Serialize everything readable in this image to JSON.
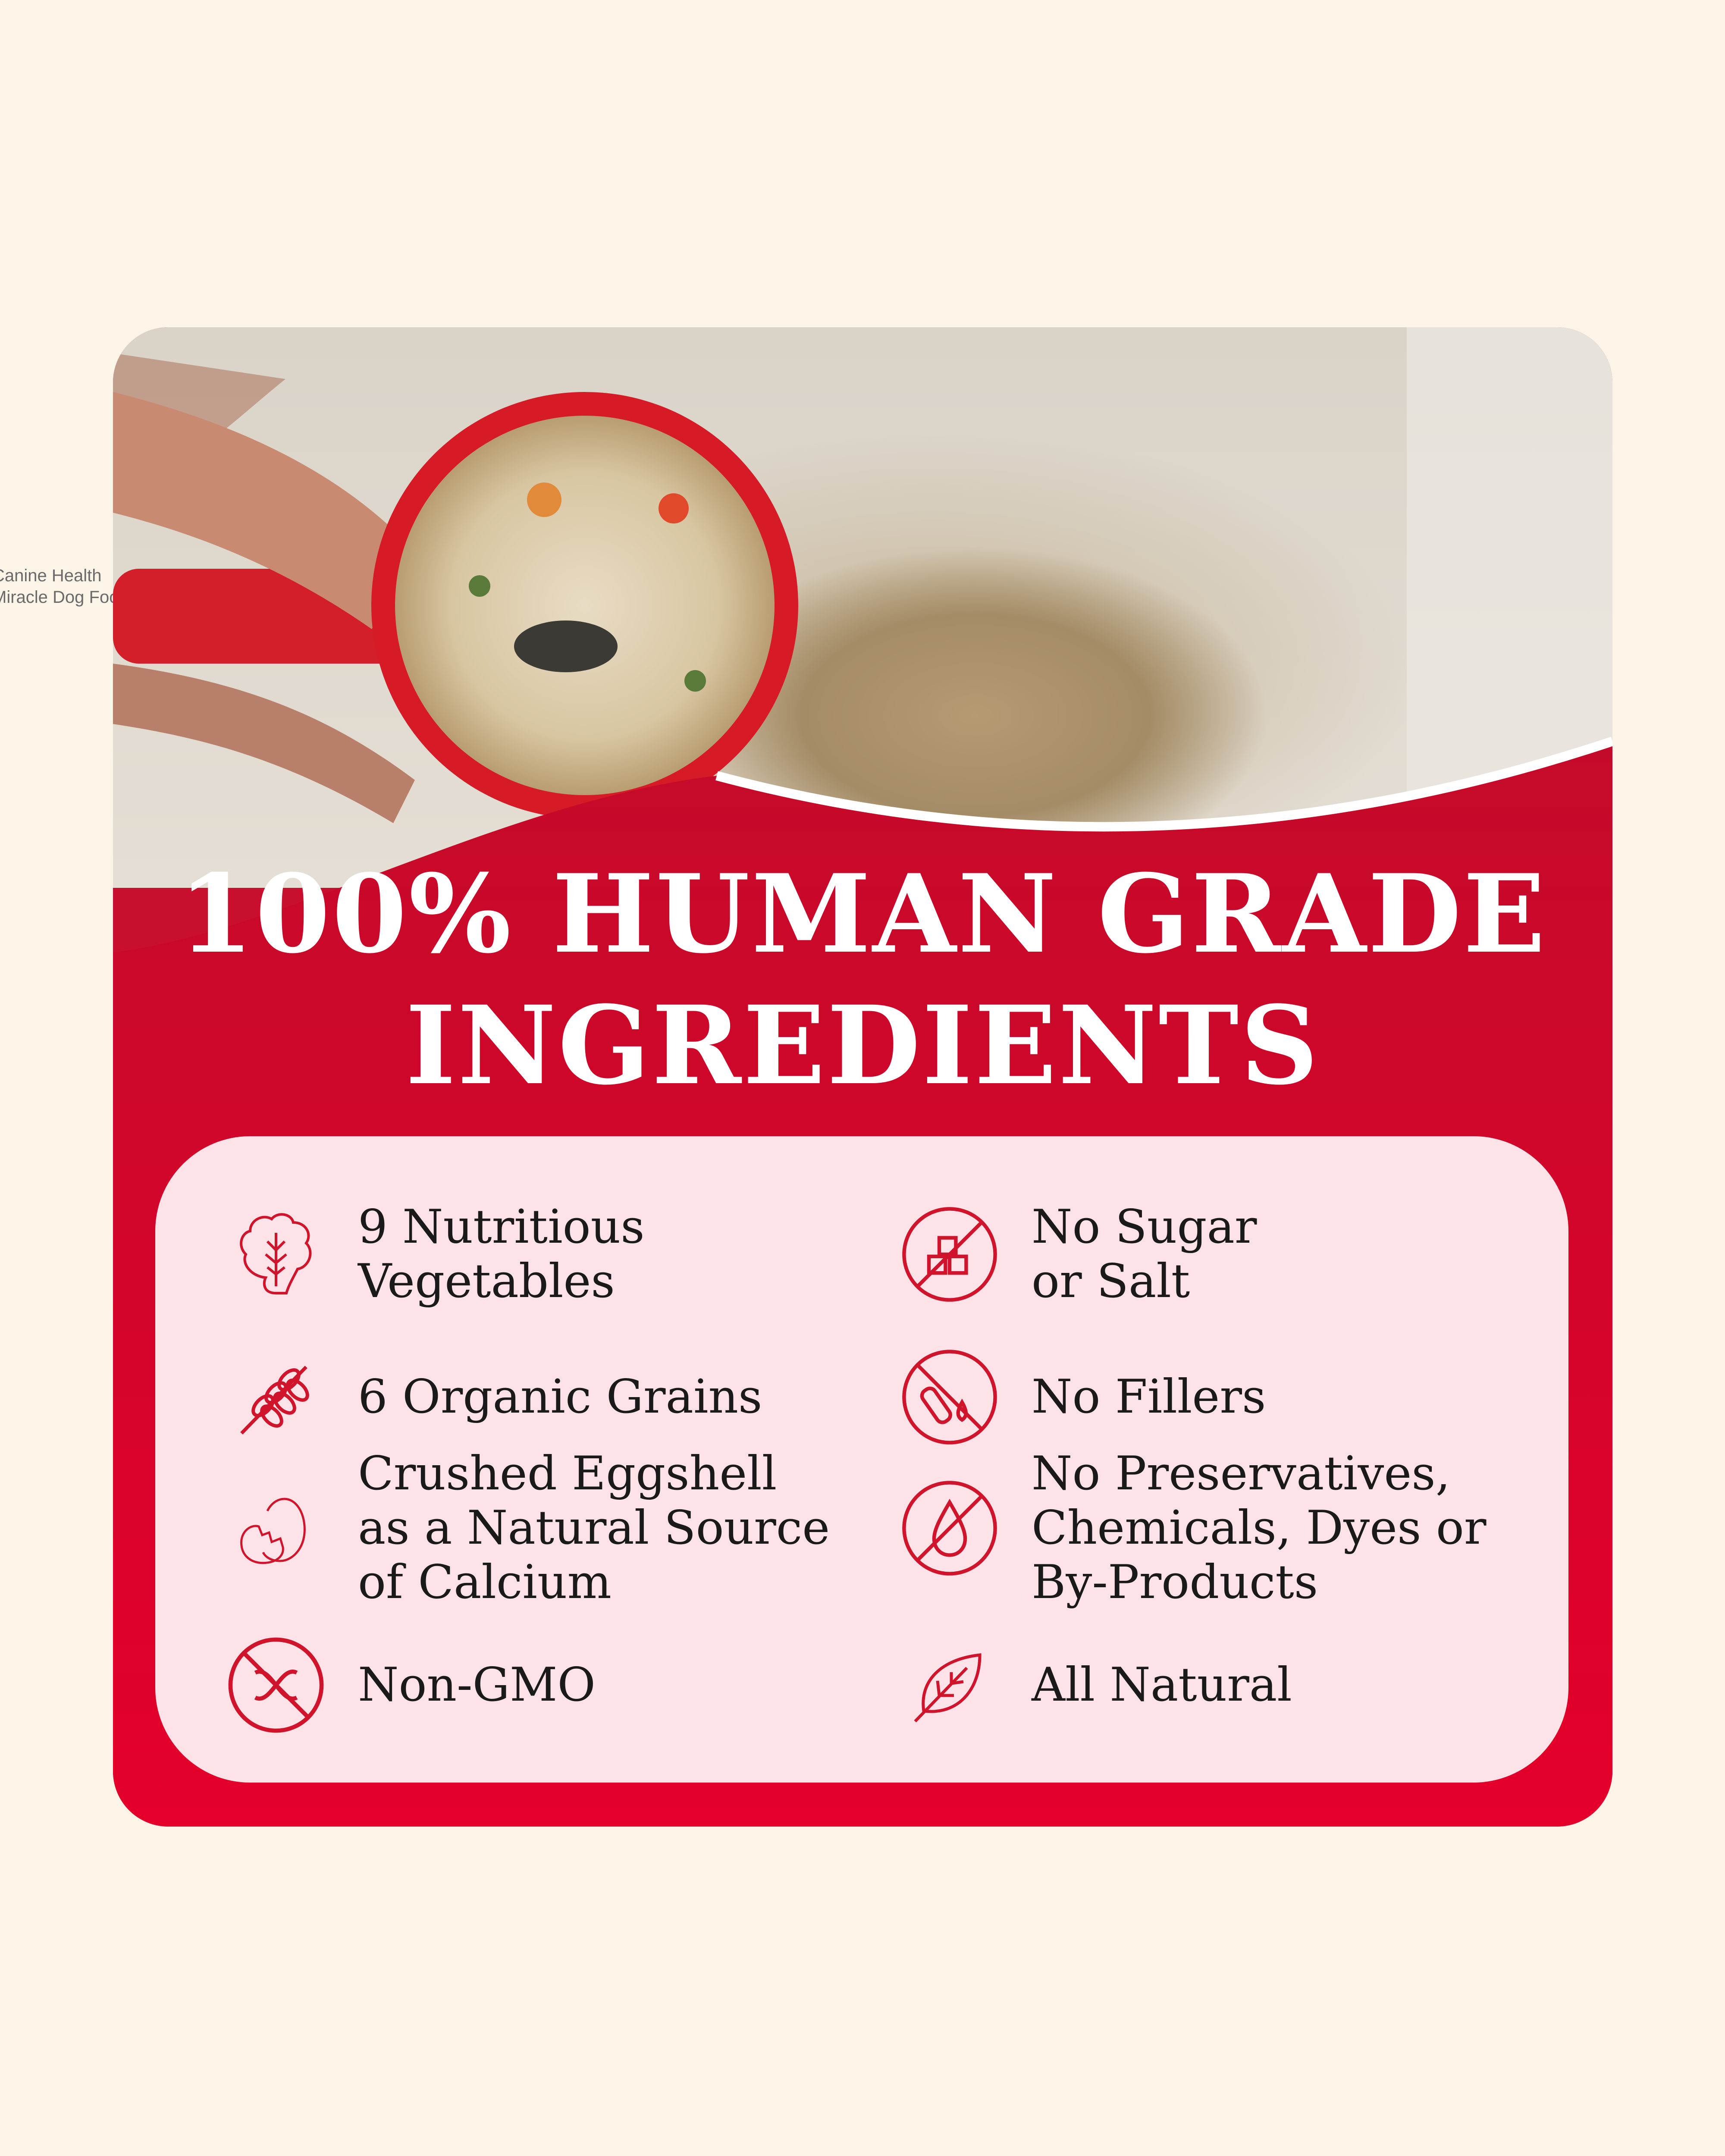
{
  "side_caption": {
    "line1": "Canine Health",
    "line2": "Miracle Dog Food"
  },
  "colors": {
    "brand_red": "#c8102e",
    "panel_pink": "#fde3e7",
    "background": "#fdf4e8"
  },
  "headline": {
    "line1": "100% HUMAN GRADE",
    "line2": "INGREDIENTS"
  },
  "features": {
    "left": [
      {
        "icon": "lettuce-icon",
        "label": "9 Nutritious\nVegetables"
      },
      {
        "icon": "wheat-icon",
        "label": "6 Organic Grains"
      },
      {
        "icon": "cracked-egg-icon",
        "label": "Crushed Eggshell\nas a Natural Source\nof Calcium"
      },
      {
        "icon": "no-gmo-icon",
        "label": "Non-GMO"
      }
    ],
    "right": [
      {
        "icon": "no-sugar-cubes-icon",
        "label": "No Sugar\nor Salt"
      },
      {
        "icon": "no-fillers-icon",
        "label": "No Fillers"
      },
      {
        "icon": "no-preservatives-drop-icon",
        "label": "No Preservatives,\nChemicals, Dyes or\nBy-Products"
      },
      {
        "icon": "leaf-icon",
        "label": "All Natural"
      }
    ]
  }
}
